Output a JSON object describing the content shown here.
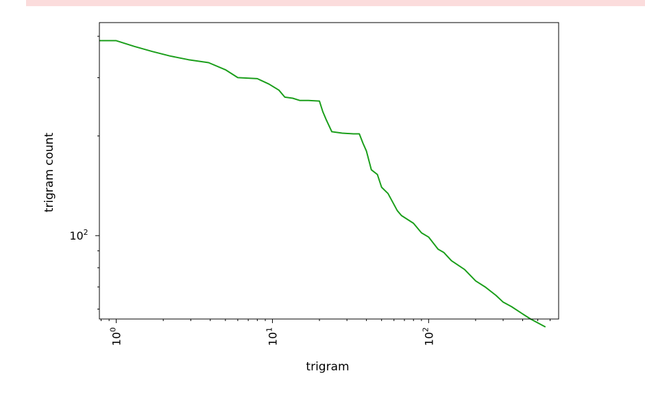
{
  "banner": {
    "color": "#fbdcdc"
  },
  "chart_data": {
    "type": "line",
    "title": "",
    "xlabel": "trigram",
    "ylabel": "trigram count",
    "xscale": "log",
    "yscale": "log",
    "xlim": [
      0.78,
      680
    ],
    "ylim": [
      56,
      440
    ],
    "grid": false,
    "legend": "none",
    "line_color": "#1a9e1a",
    "x_ticks": [
      {
        "value": 1,
        "base": "10",
        "exp": "0"
      },
      {
        "value": 10,
        "base": "10",
        "exp": "1"
      },
      {
        "value": 100,
        "base": "10",
        "exp": "2"
      }
    ],
    "y_ticks": [
      {
        "value": 100,
        "base": "10",
        "exp": "2"
      }
    ],
    "series": [
      {
        "x": [
          0.78,
          1.0,
          1.3,
          1.7,
          2.2,
          2.9,
          3.9,
          5.0,
          6.0,
          8.0,
          9.5,
          11.0,
          12.0,
          13.5,
          15.0,
          17.0,
          20.0,
          21.0,
          22.0,
          24.0,
          28.0,
          33.0,
          36.0,
          38.0,
          40.0,
          43.0,
          47.0,
          50.0,
          55.0,
          63.0,
          67.0,
          80.0,
          90.0,
          100.0,
          115.0,
          125.0,
          140.0,
          170.0,
          200.0,
          230.0,
          270.0,
          300.0,
          340.0,
          400.0,
          450.0,
          560.0
        ],
        "y": [
          388,
          388,
          373,
          360,
          349,
          340,
          333,
          317,
          300,
          298,
          287,
          275,
          262,
          260,
          256,
          256,
          255,
          237,
          225,
          206,
          204,
          203,
          203,
          190,
          180,
          158,
          153,
          140,
          134,
          119,
          115,
          109,
          102,
          99,
          91,
          89,
          84,
          79,
          73,
          70,
          66,
          63,
          61,
          58,
          56,
          53
        ]
      }
    ]
  }
}
